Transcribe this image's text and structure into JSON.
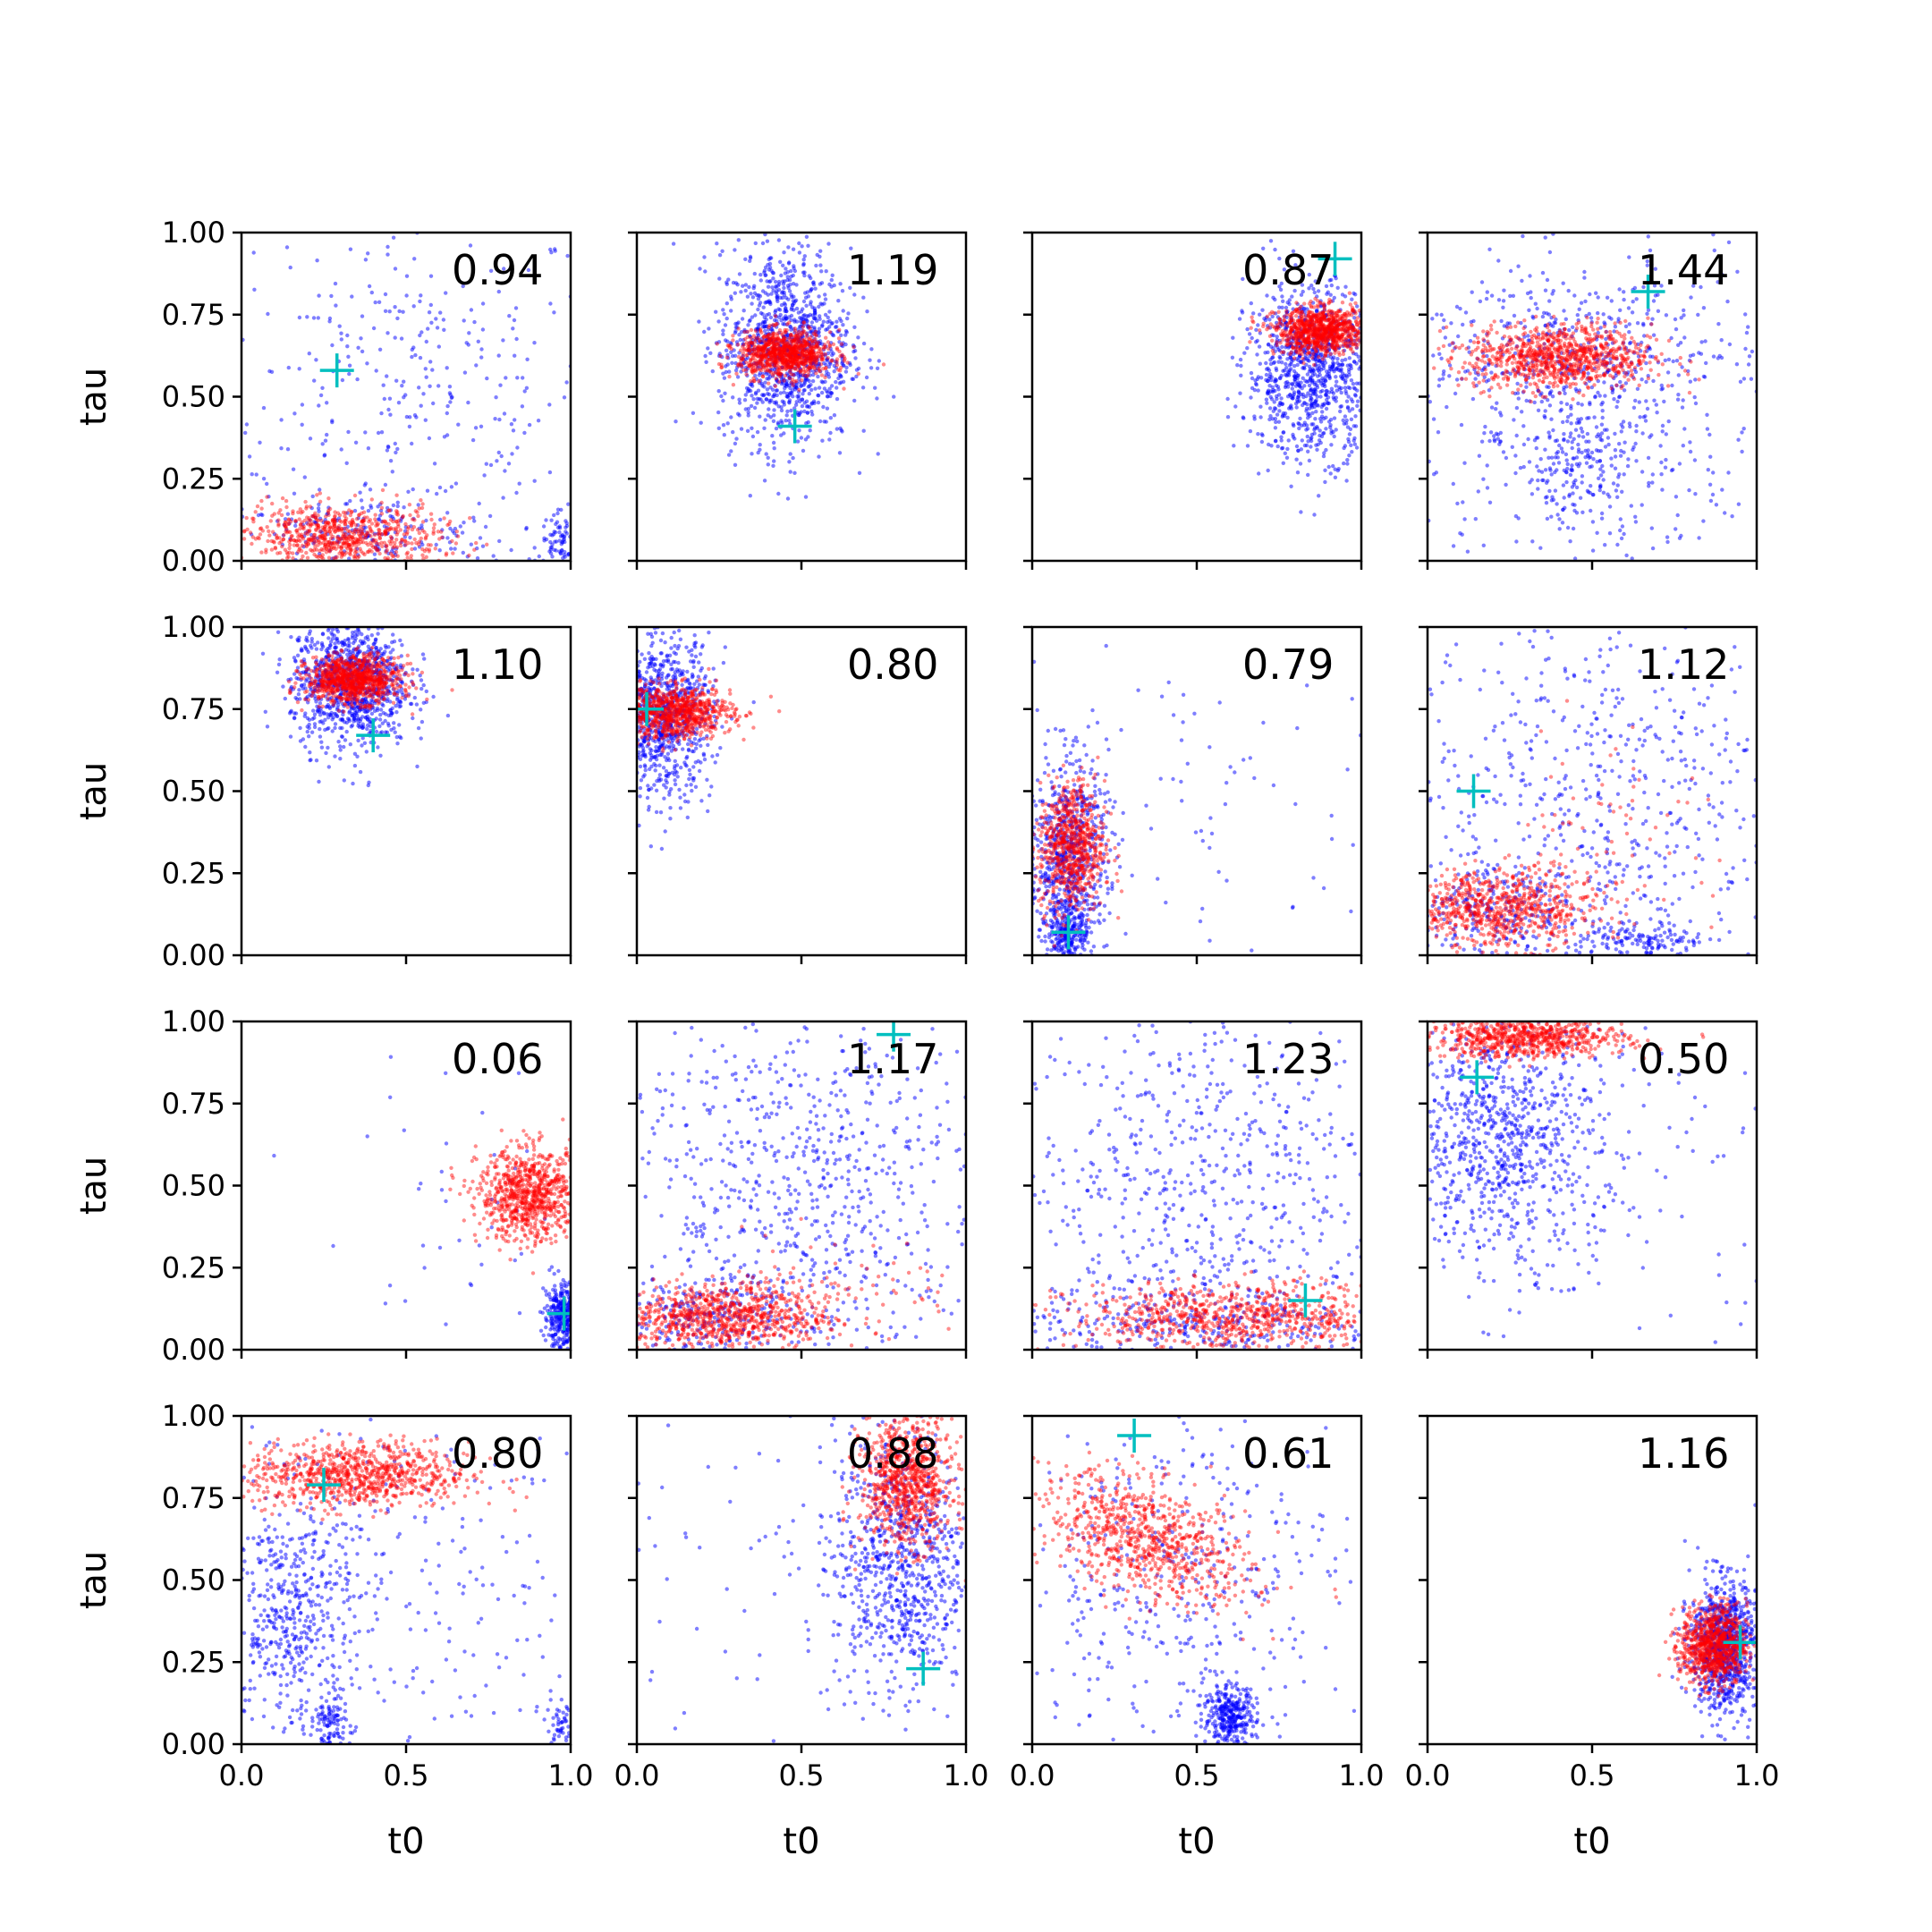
{
  "chart_data": {
    "type": "scatter",
    "grid": false,
    "layout": {
      "rows": 4,
      "cols": 4,
      "shared_x": true,
      "shared_y": true
    },
    "xlabel": "t0",
    "ylabel": "tau",
    "xlim": [
      0,
      1
    ],
    "ylim": [
      0,
      1
    ],
    "xticks": [
      "0.0",
      "0.5",
      "1.0"
    ],
    "yticks": [
      "0.00",
      "0.25",
      "0.50",
      "0.75",
      "1.00"
    ],
    "colors": {
      "blue_points": "#0000ff",
      "red_points": "#ff0000",
      "marker": "#00bfbf"
    },
    "panels": [
      {
        "label": "0.94",
        "truth": [
          0.29,
          0.58
        ],
        "blue": [
          {
            "cx": 0.5,
            "cy": 0.5,
            "sx": 0.3,
            "sy": 0.3,
            "n": 380,
            "r": 0
          },
          {
            "cx": 0.98,
            "cy": 0.05,
            "sx": 0.04,
            "sy": 0.05,
            "n": 120,
            "r": 0
          },
          {
            "cx": 0.35,
            "cy": 0.07,
            "sx": 0.22,
            "sy": 0.06,
            "n": 200,
            "r": 0
          }
        ],
        "red": [
          {
            "cx": 0.3,
            "cy": 0.07,
            "sx": 0.15,
            "sy": 0.05,
            "n": 750,
            "r": 0
          }
        ]
      },
      {
        "label": "1.19",
        "truth": [
          0.48,
          0.41
        ],
        "blue": [
          {
            "cx": 0.45,
            "cy": 0.65,
            "sx": 0.1,
            "sy": 0.15,
            "n": 1100,
            "r": 0
          }
        ],
        "red": [
          {
            "cx": 0.45,
            "cy": 0.63,
            "sx": 0.07,
            "sy": 0.035,
            "n": 900,
            "r": 0
          }
        ]
      },
      {
        "label": "0.87",
        "truth": [
          0.92,
          0.92
        ],
        "blue": [
          {
            "cx": 0.85,
            "cy": 0.58,
            "sx": 0.1,
            "sy": 0.13,
            "n": 1000,
            "r": 0
          }
        ],
        "red": [
          {
            "cx": 0.88,
            "cy": 0.7,
            "sx": 0.07,
            "sy": 0.035,
            "n": 900,
            "r": 0
          }
        ]
      },
      {
        "label": "1.44",
        "truth": [
          0.67,
          0.82
        ],
        "blue": [
          {
            "cx": 0.5,
            "cy": 0.5,
            "sx": 0.28,
            "sy": 0.28,
            "n": 550,
            "r": 0
          },
          {
            "cx": 0.45,
            "cy": 0.28,
            "sx": 0.1,
            "sy": 0.08,
            "n": 150,
            "r": 0
          },
          {
            "cx": 0.4,
            "cy": 0.62,
            "sx": 0.2,
            "sy": 0.1,
            "n": 250,
            "r": 0
          }
        ],
        "red": [
          {
            "cx": 0.4,
            "cy": 0.62,
            "sx": 0.14,
            "sy": 0.05,
            "n": 900,
            "r": 0
          }
        ]
      },
      {
        "label": "1.10",
        "truth": [
          0.4,
          0.67
        ],
        "blue": [
          {
            "cx": 0.33,
            "cy": 0.83,
            "sx": 0.09,
            "sy": 0.1,
            "n": 1000,
            "r": 0
          }
        ],
        "red": [
          {
            "cx": 0.34,
            "cy": 0.84,
            "sx": 0.07,
            "sy": 0.035,
            "n": 900,
            "r": 0
          }
        ]
      },
      {
        "label": "0.80",
        "truth": [
          0.03,
          0.75
        ],
        "blue": [
          {
            "cx": 0.07,
            "cy": 0.73,
            "sx": 0.08,
            "sy": 0.12,
            "n": 900,
            "r": 0
          }
        ],
        "red": [
          {
            "cx": 0.11,
            "cy": 0.74,
            "sx": 0.09,
            "sy": 0.04,
            "n": 850,
            "r": 0
          }
        ]
      },
      {
        "label": "0.79",
        "truth": [
          0.11,
          0.07
        ],
        "blue": [
          {
            "cx": 0.11,
            "cy": 0.3,
            "sx": 0.06,
            "sy": 0.15,
            "n": 700,
            "r": 0
          },
          {
            "cx": 0.11,
            "cy": 0.07,
            "sx": 0.03,
            "sy": 0.04,
            "n": 200,
            "r": 0
          },
          {
            "cx": 0.5,
            "cy": 0.45,
            "sx": 0.3,
            "sy": 0.28,
            "n": 80,
            "r": 0
          }
        ],
        "red": [
          {
            "cx": 0.12,
            "cy": 0.33,
            "sx": 0.05,
            "sy": 0.1,
            "n": 700,
            "r": 0
          }
        ]
      },
      {
        "label": "1.12",
        "truth": [
          0.14,
          0.5
        ],
        "blue": [
          {
            "cx": 0.5,
            "cy": 0.5,
            "sx": 0.3,
            "sy": 0.3,
            "n": 600,
            "r": 0
          },
          {
            "cx": 0.65,
            "cy": 0.04,
            "sx": 0.1,
            "sy": 0.03,
            "n": 150,
            "r": 0
          },
          {
            "cx": 0.2,
            "cy": 0.13,
            "sx": 0.15,
            "sy": 0.07,
            "n": 250,
            "r": 0
          }
        ],
        "red": [
          {
            "cx": 0.22,
            "cy": 0.14,
            "sx": 0.15,
            "sy": 0.06,
            "n": 750,
            "r": 0
          },
          {
            "cx": 0.55,
            "cy": 0.42,
            "sx": 0.15,
            "sy": 0.15,
            "n": 60,
            "r": 0
          }
        ]
      },
      {
        "label": "0.06",
        "truth": [
          0.98,
          0.11
        ],
        "blue": [
          {
            "cx": 0.98,
            "cy": 0.1,
            "sx": 0.03,
            "sy": 0.05,
            "n": 400,
            "r": 0
          },
          {
            "cx": 0.7,
            "cy": 0.4,
            "sx": 0.25,
            "sy": 0.25,
            "n": 50,
            "r": 0
          }
        ],
        "red": [
          {
            "cx": 0.88,
            "cy": 0.47,
            "sx": 0.08,
            "sy": 0.07,
            "n": 850,
            "r": 0
          }
        ]
      },
      {
        "label": "1.17",
        "truth": [
          0.78,
          0.96
        ],
        "blue": [
          {
            "cx": 0.5,
            "cy": 0.5,
            "sx": 0.3,
            "sy": 0.3,
            "n": 800,
            "r": 0
          },
          {
            "cx": 0.2,
            "cy": 0.1,
            "sx": 0.15,
            "sy": 0.06,
            "n": 250,
            "r": 0
          }
        ],
        "red": [
          {
            "cx": 0.25,
            "cy": 0.1,
            "sx": 0.17,
            "sy": 0.05,
            "n": 850,
            "r": 0
          },
          {
            "cx": 0.6,
            "cy": 0.2,
            "sx": 0.2,
            "sy": 0.08,
            "n": 80,
            "r": 0
          }
        ]
      },
      {
        "label": "1.23",
        "truth": [
          0.83,
          0.15
        ],
        "blue": [
          {
            "cx": 0.5,
            "cy": 0.5,
            "sx": 0.3,
            "sy": 0.3,
            "n": 700,
            "r": 0
          },
          {
            "cx": 0.5,
            "cy": 0.06,
            "sx": 0.3,
            "sy": 0.06,
            "n": 300,
            "r": 0
          }
        ],
        "red": [
          {
            "cx": 0.62,
            "cy": 0.1,
            "sx": 0.25,
            "sy": 0.05,
            "n": 800,
            "r": 0
          }
        ]
      },
      {
        "label": "0.50",
        "truth": [
          0.15,
          0.83
        ],
        "blue": [
          {
            "cx": 0.22,
            "cy": 0.65,
            "sx": 0.15,
            "sy": 0.18,
            "n": 800,
            "r": 0
          },
          {
            "cx": 0.5,
            "cy": 0.5,
            "sx": 0.3,
            "sy": 0.3,
            "n": 150,
            "r": 0
          }
        ],
        "red": [
          {
            "cx": 0.3,
            "cy": 0.95,
            "sx": 0.15,
            "sy": 0.03,
            "n": 750,
            "r": 0
          }
        ]
      },
      {
        "label": "0.80",
        "truth": [
          0.25,
          0.79
        ],
        "blue": [
          {
            "cx": 0.15,
            "cy": 0.4,
            "sx": 0.1,
            "sy": 0.2,
            "n": 500,
            "r": 0
          },
          {
            "cx": 0.27,
            "cy": 0.06,
            "sx": 0.03,
            "sy": 0.04,
            "n": 100,
            "r": 0
          },
          {
            "cx": 0.97,
            "cy": 0.06,
            "sx": 0.03,
            "sy": 0.04,
            "n": 60,
            "r": 0
          },
          {
            "cx": 0.5,
            "cy": 0.5,
            "sx": 0.3,
            "sy": 0.3,
            "n": 250,
            "r": 0
          }
        ],
        "red": [
          {
            "cx": 0.35,
            "cy": 0.82,
            "sx": 0.17,
            "sy": 0.05,
            "n": 850,
            "r": 0
          }
        ]
      },
      {
        "label": "0.88",
        "truth": [
          0.87,
          0.23
        ],
        "blue": [
          {
            "cx": 0.8,
            "cy": 0.55,
            "sx": 0.1,
            "sy": 0.2,
            "n": 800,
            "r": 0
          },
          {
            "cx": 0.5,
            "cy": 0.5,
            "sx": 0.3,
            "sy": 0.3,
            "n": 100,
            "r": 0
          }
        ],
        "red": [
          {
            "cx": 0.82,
            "cy": 0.8,
            "sx": 0.07,
            "sy": 0.1,
            "n": 850,
            "r": 0
          }
        ]
      },
      {
        "label": "0.61",
        "truth": [
          0.31,
          0.94
        ],
        "blue": [
          {
            "cx": 0.45,
            "cy": 0.5,
            "sx": 0.25,
            "sy": 0.25,
            "n": 400,
            "r": 0
          },
          {
            "cx": 0.6,
            "cy": 0.08,
            "sx": 0.04,
            "sy": 0.05,
            "n": 350,
            "r": 0
          }
        ],
        "red": [
          {
            "cx": 0.35,
            "cy": 0.62,
            "sx": 0.16,
            "sy": 0.1,
            "n": 800,
            "r": -0.5
          }
        ]
      },
      {
        "label": "1.16",
        "truth": [
          0.95,
          0.31
        ],
        "blue": [
          {
            "cx": 0.9,
            "cy": 0.3,
            "sx": 0.05,
            "sy": 0.1,
            "n": 900,
            "r": 0
          }
        ],
        "red": [
          {
            "cx": 0.87,
            "cy": 0.3,
            "sx": 0.05,
            "sy": 0.06,
            "n": 850,
            "r": 0
          }
        ]
      }
    ]
  }
}
